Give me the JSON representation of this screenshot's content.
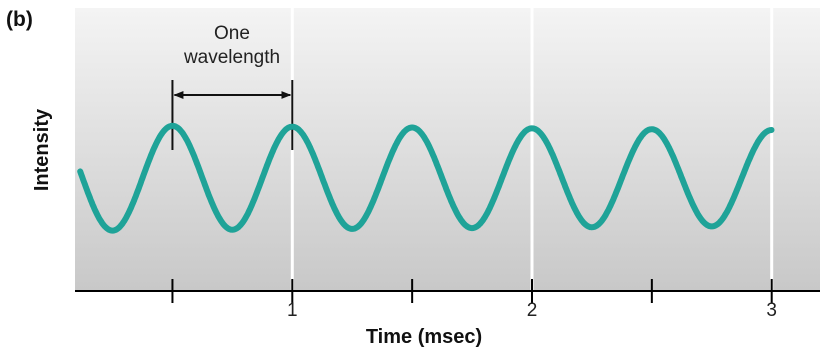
{
  "panel_label": "(b)",
  "annotation": {
    "line1": "One",
    "line2": "wavelength"
  },
  "colors": {
    "wave": "#1fa398",
    "background_top": "#f4f4f4",
    "background_bottom": "#c8c8c8",
    "gridline": "#ffffff",
    "axis": "#000000"
  },
  "chart_data": {
    "type": "line",
    "xlabel": "Time (msec)",
    "ylabel": "Intensity",
    "xlim": [
      0,
      3
    ],
    "x_ticks": [
      1,
      2,
      3
    ],
    "x_tick_labels": [
      "1",
      "2",
      "3"
    ],
    "x_minor_ticks": [
      0.5,
      1.5,
      2.5
    ],
    "period": 0.5,
    "peaks": [
      0.5,
      1.0,
      1.5,
      2.0,
      2.5
    ],
    "annotated_wavelength": {
      "from": 0.5,
      "to": 1.0
    },
    "grid": "vertical"
  }
}
